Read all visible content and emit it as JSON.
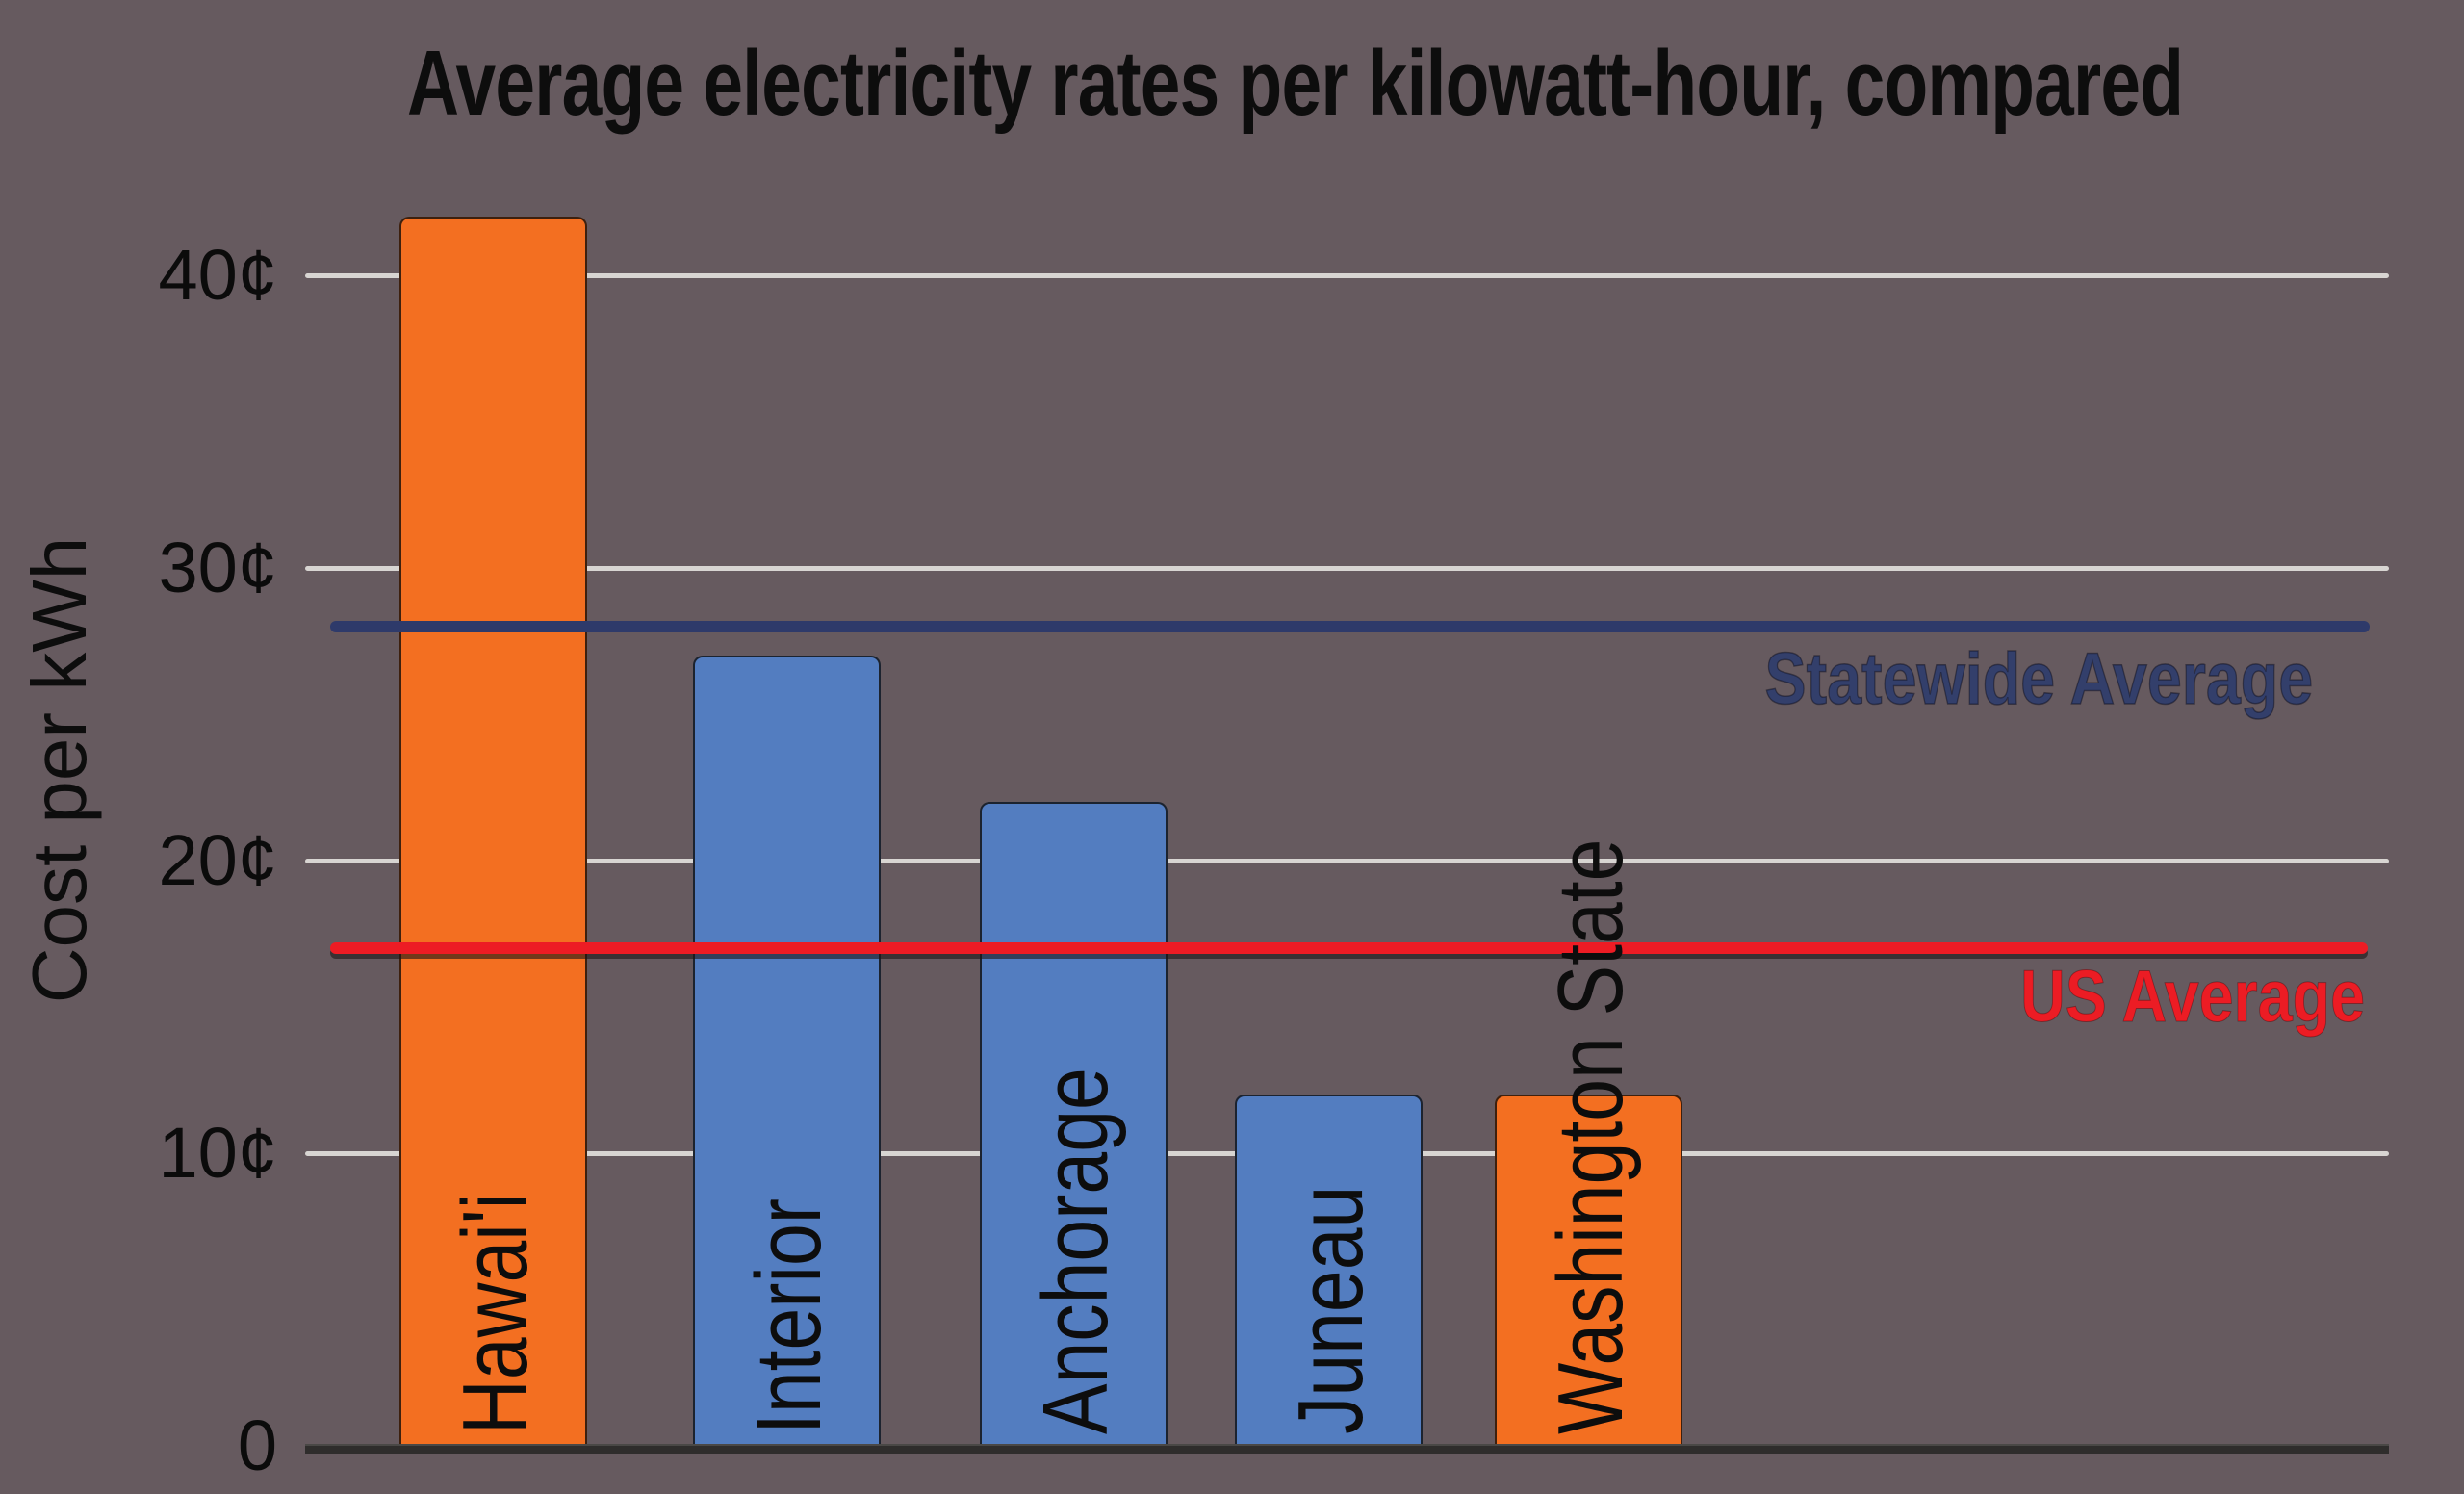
{
  "chart": {
    "title": "Average electricity rates per kilowatt-hour, compared",
    "background_color": "#665a5f"
  },
  "chart_data": {
    "type": "bar",
    "title": "Average electricity rates per kilowatt-hour, compared",
    "xlabel": "",
    "ylabel": "Cost per kWh",
    "unit": "cents per kWh",
    "categories": [
      "Hawai'i",
      "Interior",
      "Anchorage",
      "Juneau",
      "Washington State"
    ],
    "values": [
      42,
      27,
      22,
      12,
      12
    ],
    "bar_colors": [
      "#f36f21",
      "#537dc0",
      "#537dc0",
      "#537dc0",
      "#f36f21"
    ],
    "ylim": [
      0,
      45
    ],
    "grid": true,
    "yticks": [
      {
        "value": 0,
        "label": "0"
      },
      {
        "value": 10,
        "label": "10¢"
      },
      {
        "value": 20,
        "label": "20¢"
      },
      {
        "value": 30,
        "label": "30¢"
      },
      {
        "value": 40,
        "label": "40¢"
      }
    ],
    "reference_lines": [
      {
        "name": "Statewide Average",
        "value": 28,
        "color": "#2e3a6a"
      },
      {
        "name": "US Average",
        "value": 17,
        "color": "#ed1c24"
      }
    ],
    "legend_position": "right of plot, next to each line"
  },
  "legend": {
    "statewide_label": "Statewide Average",
    "statewide_color": "#333f6b",
    "us_label": "US Average",
    "us_color": "#ec1c24"
  },
  "colors": {
    "gridline": "#d8d5d2",
    "baseline": "#2f2d2c",
    "orange_bar": "#f36f21",
    "blue_bar": "#537dc0",
    "statewide_line": "#2e3a6a",
    "us_line": "#ed1c24",
    "text": "#0d0d0d"
  }
}
